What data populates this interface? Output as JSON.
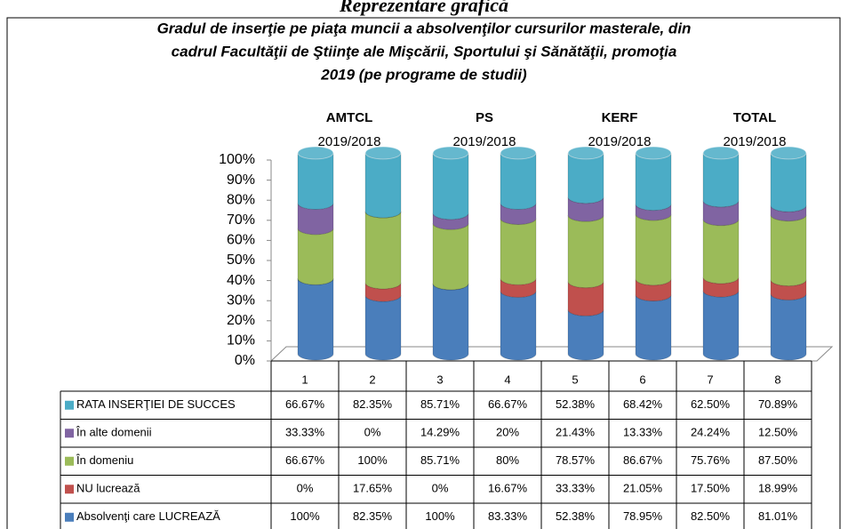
{
  "chart_data": {
    "type": "bar",
    "stack": "percent",
    "heading": "Reprezentare grafică",
    "title": [
      "Gradul de inserţie pe piaţa muncii a absolvenţilor cursurilor masterale, din",
      "cadrul Facultăţii de Ştiinţe ale Mişcării, Sportului şi Sănătăţii, promoţia",
      "2019 (pe programe de studii)"
    ],
    "groups": [
      {
        "label": "AMTCL",
        "period": "2019/2018"
      },
      {
        "label": "PS",
        "period": "2019/2018"
      },
      {
        "label": "KERF",
        "period": "2019/2018"
      },
      {
        "label": "TOTAL",
        "period": "2019/2018"
      }
    ],
    "categories": [
      "1",
      "2",
      "3",
      "4",
      "5",
      "6",
      "7",
      "8"
    ],
    "ylim": [
      0,
      100
    ],
    "yticks": [
      {
        "value": 0,
        "label": "0%"
      },
      {
        "value": 10,
        "label": "10%"
      },
      {
        "value": 20,
        "label": "20%"
      },
      {
        "value": 30,
        "label": "30%"
      },
      {
        "value": 40,
        "label": "40%"
      },
      {
        "value": 50,
        "label": "50%"
      },
      {
        "value": 60,
        "label": "60%"
      },
      {
        "value": 70,
        "label": "70%"
      },
      {
        "value": 80,
        "label": "80%"
      },
      {
        "value": 90,
        "label": "90%"
      },
      {
        "value": 100,
        "label": "100%"
      }
    ],
    "series": [
      {
        "name": "Absolvenţi care LUCREAZĂ",
        "color": "#4a7ebb",
        "values": [
          100,
          82.35,
          100,
          83.33,
          52.38,
          78.95,
          82.5,
          81.01
        ],
        "value_labels": [
          "100%",
          "82.35%",
          "100%",
          "83.33%",
          "52.38%",
          "78.95%",
          "82.50%",
          "81.01%"
        ]
      },
      {
        "name": "NU lucrează",
        "color": "#c0504d",
        "values": [
          0,
          17.65,
          0,
          16.67,
          33.33,
          21.05,
          17.5,
          18.99
        ],
        "value_labels": [
          "0%",
          "17.65%",
          "0%",
          "16.67%",
          "33.33%",
          "21.05%",
          "17.50%",
          "18.99%"
        ]
      },
      {
        "name": "În domeniu",
        "color": "#9bbb59",
        "values": [
          66.67,
          100,
          85.71,
          80,
          78.57,
          86.67,
          75.76,
          87.5
        ],
        "value_labels": [
          "66.67%",
          "100%",
          "85.71%",
          "80%",
          "78.57%",
          "86.67%",
          "75.76%",
          "87.50%"
        ]
      },
      {
        "name": "În alte domenii",
        "color": "#8064a2",
        "values": [
          33.33,
          0,
          14.29,
          20,
          21.43,
          13.33,
          24.24,
          12.5
        ],
        "value_labels": [
          "33.33%",
          "0%",
          "14.29%",
          "20%",
          "21.43%",
          "13.33%",
          "24.24%",
          "12.50%"
        ]
      },
      {
        "name": "RATA INSERŢIEI DE  SUCCES",
        "color": "#4bacc6",
        "values": [
          66.67,
          82.35,
          85.71,
          66.67,
          52.38,
          68.42,
          62.5,
          70.89
        ],
        "value_labels": [
          "66.67%",
          "82.35%",
          "85.71%",
          "66.67%",
          "52.38%",
          "68.42%",
          "62.50%",
          "70.89%"
        ]
      }
    ]
  }
}
